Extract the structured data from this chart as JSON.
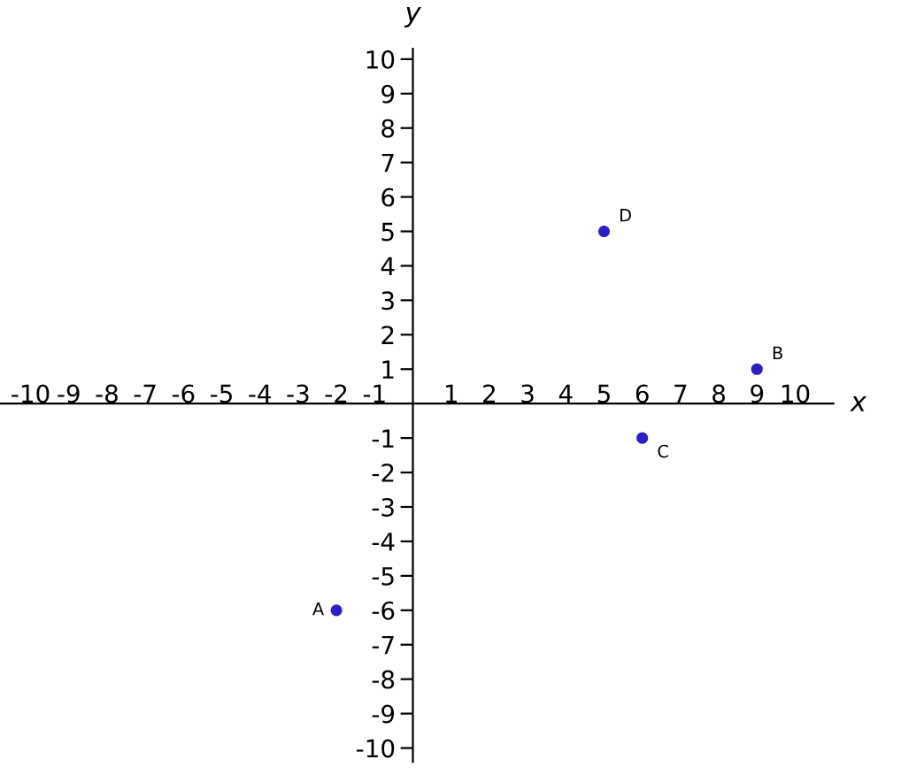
{
  "chart_data": {
    "type": "scatter",
    "xlabel": "x",
    "ylabel": "y",
    "x": [
      -2,
      9,
      6,
      5
    ],
    "series": [
      {
        "color": "#2a1fc8",
        "values": [
          -6,
          1,
          -1,
          5
        ]
      }
    ],
    "xlim": [
      -10.8,
      11
    ],
    "ylim": [
      -10.4,
      10.3
    ],
    "xticks": [
      -10,
      -9,
      -8,
      -7,
      -6,
      -5,
      -4,
      -3,
      -2,
      -1,
      1,
      2,
      3,
      4,
      5,
      6,
      7,
      8,
      9,
      10
    ],
    "yticks": [
      -10,
      -9,
      -8,
      -7,
      -6,
      -5,
      -4,
      -3,
      -2,
      -1,
      1,
      2,
      3,
      4,
      5,
      6,
      7,
      8,
      9,
      10
    ],
    "marker": "circle",
    "grid": false,
    "legend": false,
    "annotations": [
      {
        "text": "A",
        "x": -2,
        "y": -6
      },
      {
        "text": "B",
        "x": 9,
        "y": 1
      },
      {
        "text": "C",
        "x": 6,
        "y": -1
      },
      {
        "text": "D",
        "x": 5,
        "y": 5
      }
    ]
  }
}
